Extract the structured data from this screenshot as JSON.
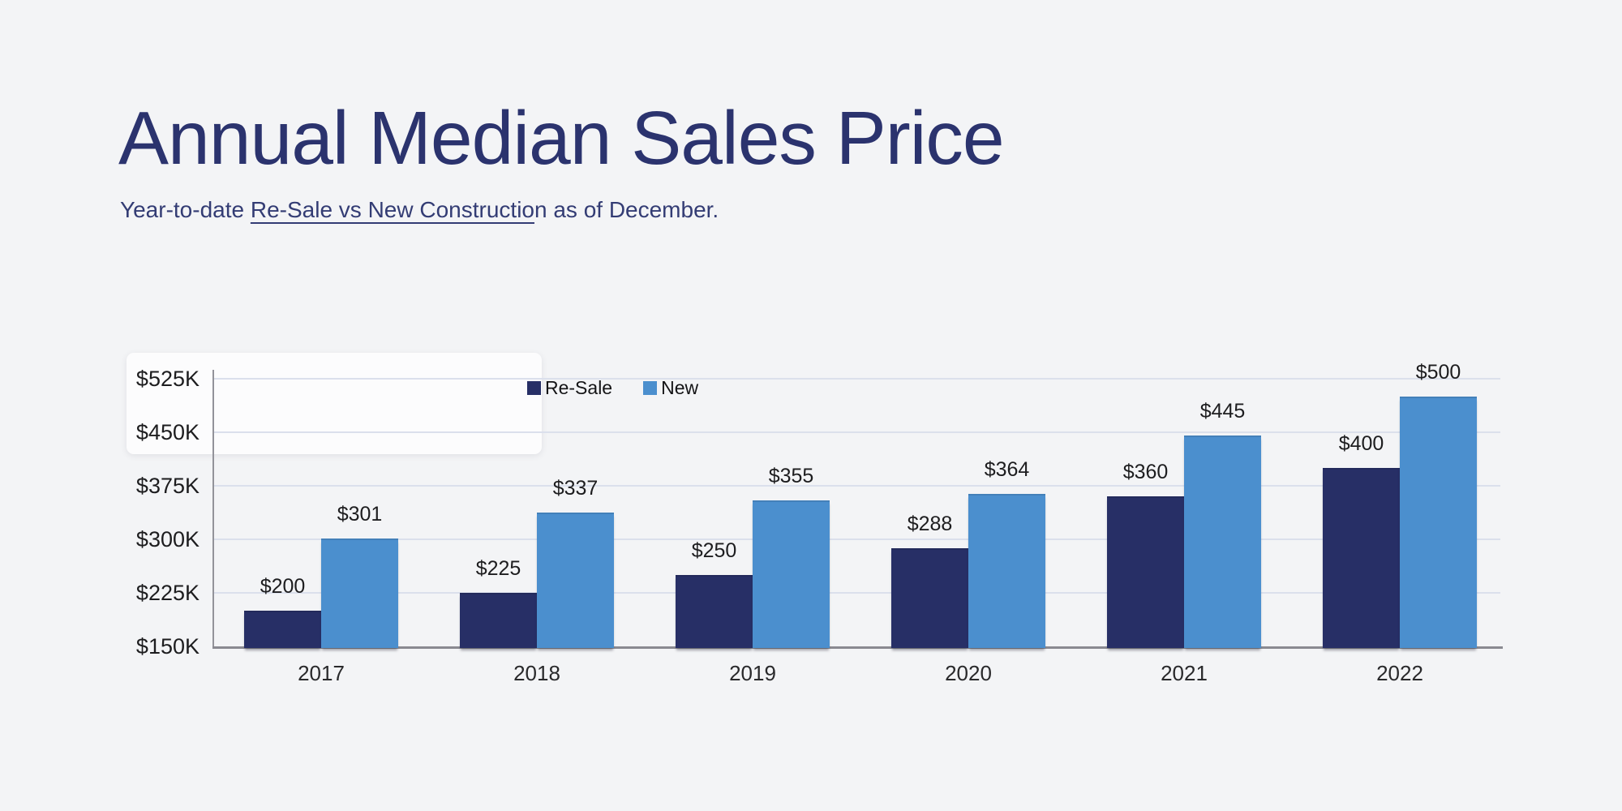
{
  "page": {
    "background": "#f3f4f6"
  },
  "header": {
    "title": "Annual Median Sales Price",
    "subtitle_prefix": "Year-to-date ",
    "subtitle_link": "Re-Sale vs New Constructio",
    "subtitle_suffix": "n as of December."
  },
  "legend": {
    "items": [
      {
        "label": "Re-Sale",
        "color": "#272f66"
      },
      {
        "label": "New",
        "color": "#4b8fce"
      }
    ]
  },
  "chart_data": {
    "type": "bar",
    "title": "Annual Median Sales Price",
    "subtitle": "Year-to-date Re-Sale vs New Construction as of December.",
    "categories": [
      "2017",
      "2018",
      "2019",
      "2020",
      "2021",
      "2022"
    ],
    "series": [
      {
        "name": "Re-Sale",
        "color": "#272f66",
        "values": [
          200,
          225,
          250,
          288,
          360,
          400
        ],
        "labels": [
          "$200",
          "$225",
          "$250",
          "$288",
          "$360",
          "$400"
        ]
      },
      {
        "name": "New",
        "color": "#4b8fce",
        "values": [
          301,
          337,
          355,
          364,
          445,
          500
        ],
        "labels": [
          "$301",
          "$337",
          "$355",
          "$364",
          "$445",
          "$500"
        ]
      }
    ],
    "value_unit": "thousand USD",
    "xlabel": "",
    "ylabel": "",
    "ylim": [
      150,
      525
    ],
    "y_ticks": [
      {
        "value": 525,
        "label": "$525K"
      },
      {
        "value": 450,
        "label": "$450K"
      },
      {
        "value": 375,
        "label": "$375K"
      },
      {
        "value": 300,
        "label": "$300K"
      },
      {
        "value": 225,
        "label": "$225K"
      },
      {
        "value": 150,
        "label": "$150K"
      }
    ],
    "grid": true,
    "legend_position": "top-center"
  },
  "colors": {
    "background": "#f3f4f6",
    "title": "#2b336e",
    "subtitle": "#333c74",
    "gridline": "#dbe0ec",
    "axis": "#93939a",
    "baseline": "#8a8a91",
    "tick_text": "#1d1d1f",
    "resale_bar": "#272f66",
    "new_bar": "#4b8fce"
  }
}
